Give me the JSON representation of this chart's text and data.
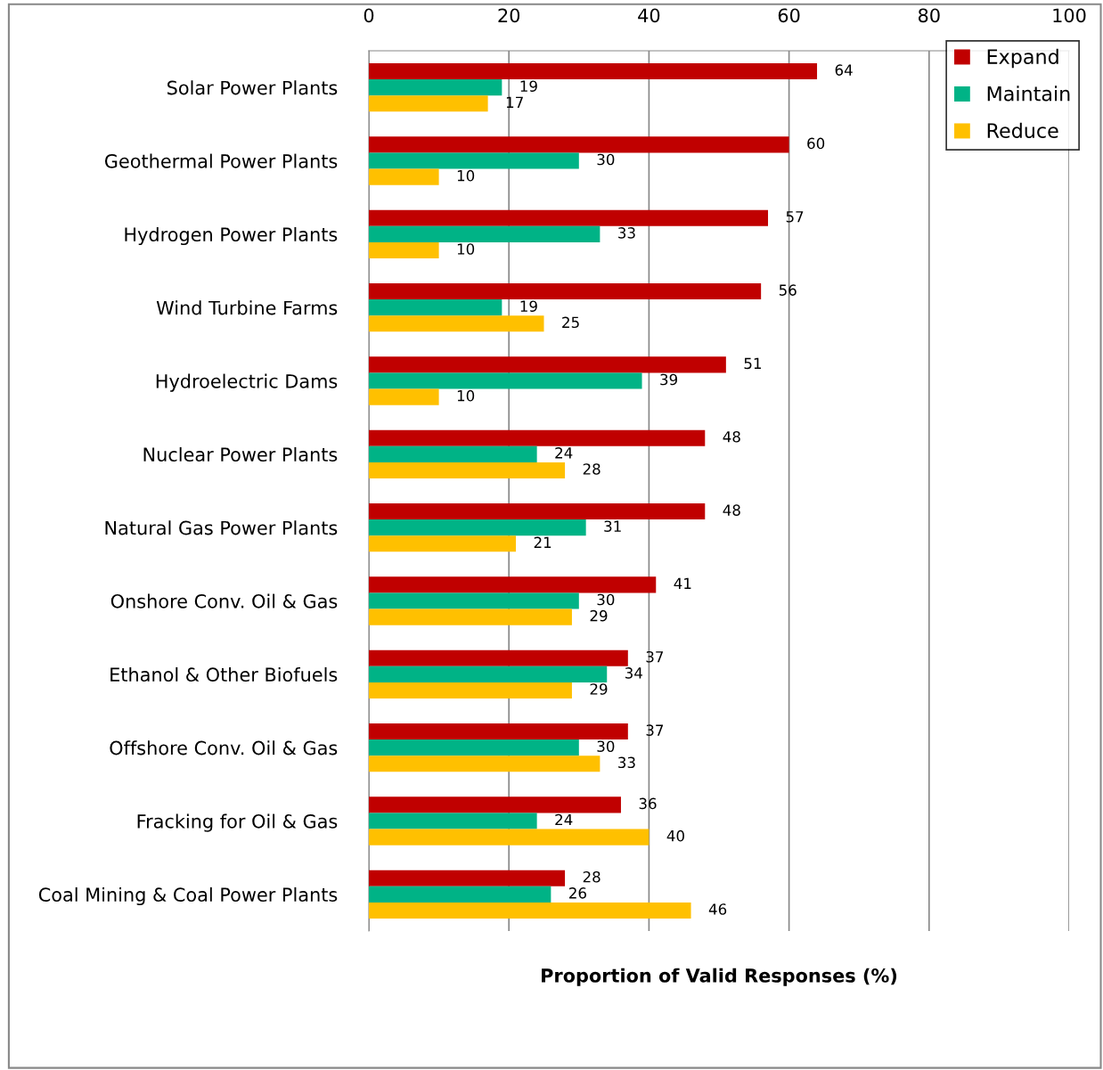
{
  "chart_data": {
    "type": "bar",
    "orientation": "horizontal",
    "categories": [
      "Solar Power Plants",
      "Geothermal Power Plants",
      "Hydrogen Power Plants",
      "Wind Turbine Farms",
      "Hydroelectric Dams",
      "Nuclear Power Plants",
      "Natural Gas Power Plants",
      "Onshore Conv. Oil & Gas",
      "Ethanol & Other Biofuels",
      "Offshore Conv. Oil & Gas",
      "Fracking for Oil & Gas",
      "Coal Mining & Coal Power Plants"
    ],
    "series": [
      {
        "name": "Expand",
        "color": "#c00000",
        "values": [
          64,
          60,
          57,
          56,
          51,
          48,
          48,
          41,
          37,
          37,
          36,
          28
        ]
      },
      {
        "name": "Maintain",
        "color": "#00b386",
        "values": [
          19,
          30,
          33,
          19,
          39,
          24,
          31,
          30,
          34,
          30,
          24,
          26
        ]
      },
      {
        "name": "Reduce",
        "color": "#ffc000",
        "values": [
          17,
          10,
          10,
          25,
          10,
          28,
          21,
          29,
          29,
          33,
          40,
          46
        ]
      }
    ],
    "xlim": [
      0,
      100
    ],
    "xticks": [
      0,
      20,
      40,
      60,
      80,
      100
    ],
    "xlabel": "Proportion of Valid Responses (%)",
    "data_labels": true,
    "grid": "x",
    "legend": "top right"
  }
}
